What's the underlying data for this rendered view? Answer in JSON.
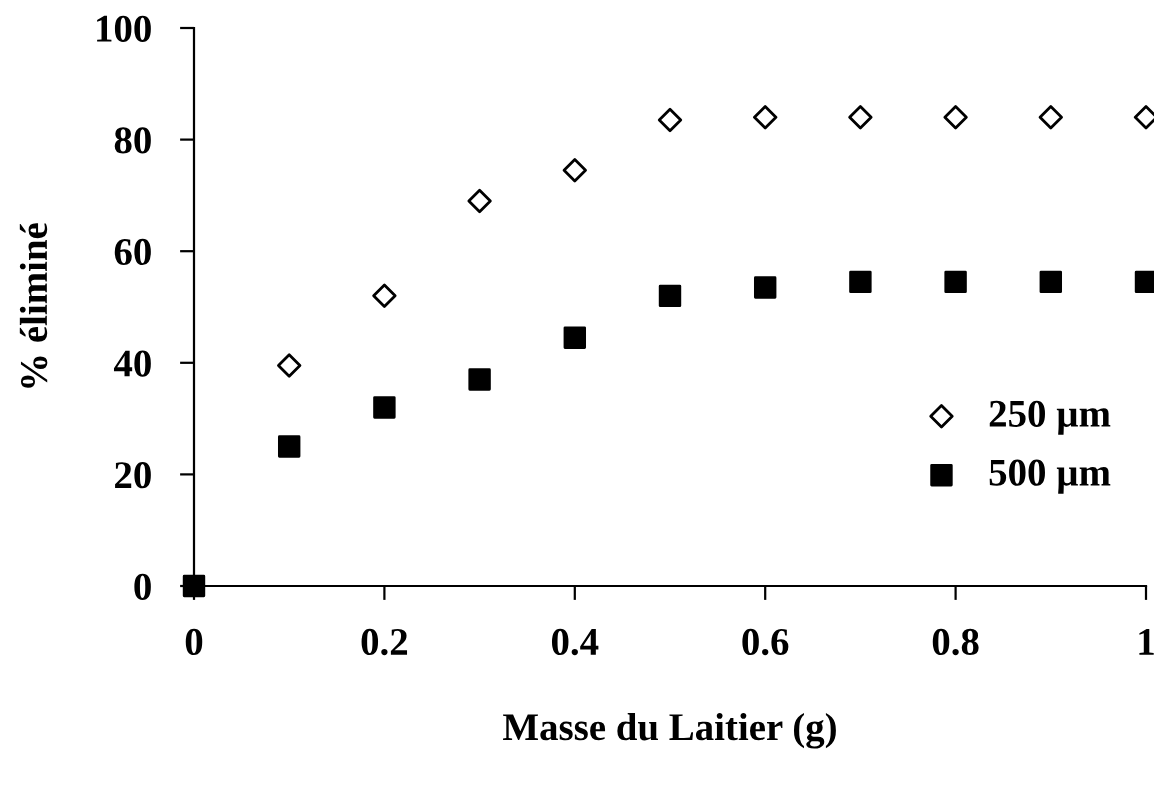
{
  "chart_data": {
    "type": "scatter",
    "xlabel": "Masse du Laitier (g)",
    "ylabel": "% éliminé",
    "x": [
      0,
      0.1,
      0.2,
      0.3,
      0.4,
      0.5,
      0.6,
      0.7,
      0.8,
      0.9,
      1
    ],
    "series": [
      {
        "name": "250 µm",
        "color": "#000000",
        "marker": "diamond",
        "values": [
          null,
          39.5,
          52,
          69,
          74.5,
          83.5,
          84,
          84,
          84,
          84,
          84
        ]
      },
      {
        "name": "500 µm",
        "color": "#000000",
        "marker": "square",
        "values": [
          0,
          25,
          32,
          37,
          44.5,
          52,
          53.5,
          54.5,
          54.5,
          54.5,
          54.5
        ]
      }
    ],
    "xlim": [
      0,
      1
    ],
    "xticks": [
      0,
      0.2,
      0.4,
      0.6,
      0.8,
      1
    ],
    "ylim": [
      0,
      100
    ],
    "yticks": [
      0,
      20,
      40,
      60,
      80,
      100
    ],
    "grid": false,
    "legend": "right"
  }
}
